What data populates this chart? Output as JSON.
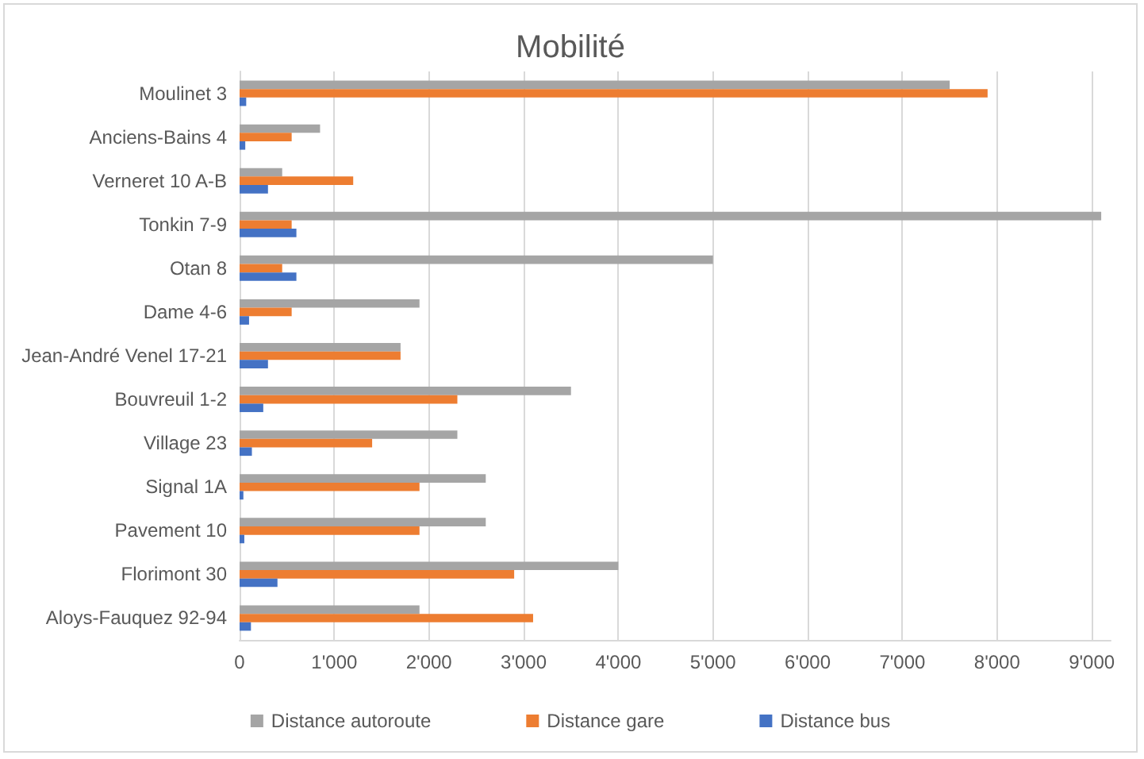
{
  "chart_data": {
    "type": "bar",
    "title": "Mobilité",
    "orientation": "horizontal",
    "categories": [
      "Moulinet 3",
      "Anciens-Bains 4",
      "Verneret 10 A-B",
      "Tonkin 7-9",
      "Otan 8",
      "Dame 4-6",
      "Jean-André Venel 17-21",
      "Bouvreuil 1-2",
      "Village 23",
      "Signal 1A",
      "Pavement 10",
      "Florimont 30",
      "Aloys-Fauquez 92-94"
    ],
    "series": [
      {
        "name": "Distance autoroute",
        "color": "#a5a5a5",
        "values": [
          7500,
          850,
          450,
          9100,
          5000,
          1900,
          1700,
          3500,
          2300,
          2600,
          2600,
          4000,
          1900
        ]
      },
      {
        "name": "Distance gare",
        "color": "#ed7d31",
        "values": [
          7900,
          550,
          1200,
          550,
          450,
          550,
          1700,
          2300,
          1400,
          1900,
          1900,
          2900,
          3100
        ]
      },
      {
        "name": "Distance bus",
        "color": "#4472c4",
        "values": [
          70,
          60,
          300,
          600,
          600,
          100,
          300,
          250,
          130,
          40,
          50,
          400,
          120
        ]
      }
    ],
    "xlim": [
      0,
      9200
    ],
    "xticks": [
      0,
      {
        "value": 1000,
        "label": "1'000"
      },
      {
        "value": 2000,
        "label": "2'000"
      },
      {
        "value": 3000,
        "label": "3'000"
      },
      {
        "value": 4000,
        "label": "4'000"
      },
      {
        "value": 5000,
        "label": "5'000"
      },
      {
        "value": 6000,
        "label": "6'000"
      },
      {
        "value": 7000,
        "label": "7'000"
      },
      {
        "value": 8000,
        "label": "8'000"
      },
      {
        "value": 9000,
        "label": "9'000"
      }
    ],
    "grid": "x",
    "legend": "bottom"
  }
}
